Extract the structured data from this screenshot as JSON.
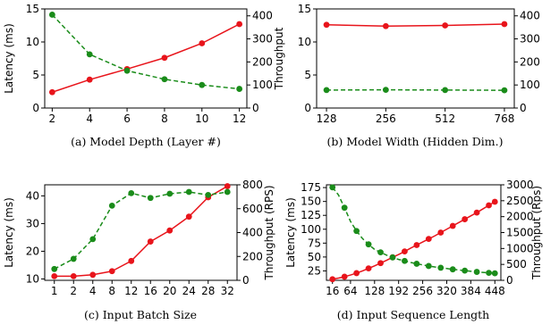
{
  "chart_data": [
    {
      "type": "line",
      "caption": "(a)  Model Depth (Layer #)",
      "x": [
        2,
        4,
        6,
        8,
        10,
        12
      ],
      "xticks": [
        "2",
        "4",
        "6",
        "8",
        "10",
        "12"
      ],
      "xscale": "linear",
      "xlim": [
        1.6,
        12.4
      ],
      "ylabel": "Latency (ms)",
      "y2label": "Throughput",
      "ylim": [
        0,
        15
      ],
      "y2lim": [
        0,
        430
      ],
      "yticks": [
        0,
        5,
        10,
        15
      ],
      "y2ticks": [
        0,
        100,
        200,
        300,
        400
      ],
      "series": [
        {
          "axis": "left",
          "color": "#e8141b",
          "style": "solid",
          "values": [
            2.4,
            4.3,
            5.9,
            7.6,
            9.8,
            12.7
          ]
        },
        {
          "axis": "right",
          "color": "#1a8c1a",
          "style": "dashed",
          "values": [
            405,
            233,
            162,
            125,
            100,
            83
          ]
        }
      ]
    },
    {
      "type": "line",
      "caption": "(b)  Model Width (Hidden Dim.)",
      "x": [
        128,
        256,
        512,
        768
      ],
      "xticks": [
        "128",
        "256",
        "512",
        "768"
      ],
      "xscale": "categorical",
      "ylabel": "",
      "y2label": "",
      "ylim": [
        0,
        15
      ],
      "y2lim": [
        0,
        430
      ],
      "yticks": [
        0,
        5,
        10,
        15
      ],
      "y2ticks": [
        0,
        100,
        200,
        300,
        400
      ],
      "series": [
        {
          "axis": "left",
          "color": "#e8141b",
          "style": "solid",
          "values": [
            12.6,
            12.4,
            12.5,
            12.7
          ]
        },
        {
          "axis": "right",
          "color": "#1a8c1a",
          "style": "dashed",
          "values": [
            78,
            79,
            78,
            77
          ]
        }
      ]
    },
    {
      "type": "line",
      "caption": "(c)  Input Batch Size",
      "x": [
        1,
        2,
        4,
        8,
        12,
        16,
        20,
        24,
        28,
        32
      ],
      "xticks": [
        "1",
        "2",
        "4",
        "8",
        "12",
        "16",
        "20",
        "24",
        "28",
        "32"
      ],
      "xscale": "categorical",
      "ylabel": "Latency (ms)",
      "y2label": "Throughput (RPS)",
      "ylim": [
        9.5,
        44
      ],
      "y2lim": [
        0,
        800
      ],
      "yticks": [
        10,
        20,
        30,
        40
      ],
      "y2ticks": [
        0,
        200,
        400,
        600,
        800
      ],
      "series": [
        {
          "axis": "left",
          "color": "#e8141b",
          "style": "solid",
          "values": [
            11,
            11,
            11.5,
            12.8,
            16.5,
            23.5,
            27.5,
            32.5,
            39.5,
            43.5
          ]
        },
        {
          "axis": "right",
          "color": "#1a8c1a",
          "style": "dashed",
          "values": [
            95,
            180,
            345,
            625,
            730,
            690,
            725,
            740,
            715,
            740
          ]
        }
      ]
    },
    {
      "type": "line",
      "caption": "(d)  Input Sequence Length",
      "x": [
        16,
        32,
        48,
        64,
        80,
        96,
        112,
        128,
        144,
        160,
        176,
        192,
        208,
        224,
        240,
        256,
        272,
        288,
        304,
        320,
        336,
        352,
        368,
        384,
        400,
        416,
        432,
        448
      ],
      "xticks": [
        "16",
        "64",
        "128",
        "192",
        "256",
        "320",
        "384",
        "448"
      ],
      "xtick_values": [
        16,
        64,
        128,
        192,
        256,
        320,
        384,
        448
      ],
      "xscale": "linear",
      "marker_every": 2,
      "xlim": [
        0,
        464
      ],
      "ylabel": "Latency (ms)",
      "y2label": "Throughput (Rps)",
      "ylim": [
        8,
        180
      ],
      "y2lim": [
        0,
        3000
      ],
      "yticks": [
        25,
        50,
        75,
        100,
        125,
        150,
        175
      ],
      "y2ticks": [
        0,
        500,
        1000,
        1500,
        2000,
        2500,
        3000
      ],
      "series": [
        {
          "axis": "left",
          "color": "#e8141b",
          "style": "solid",
          "values": [
            10,
            12,
            14.5,
            17.5,
            21,
            25,
            29.5,
            34,
            39,
            44,
            49.5,
            54.5,
            60,
            66,
            71.5,
            77,
            82.5,
            88,
            94,
            100,
            106,
            112,
            118,
            124,
            130,
            136.5,
            143,
            149.5
          ]
        },
        {
          "axis": "right",
          "color": "#1a8c1a",
          "style": "dashed",
          "values": [
            2920,
            2680,
            2280,
            1850,
            1550,
            1310,
            1130,
            970,
            880,
            790,
            720,
            655,
            610,
            560,
            520,
            485,
            450,
            420,
            395,
            370,
            345,
            325,
            305,
            285,
            265,
            250,
            235,
            220
          ]
        }
      ]
    }
  ]
}
